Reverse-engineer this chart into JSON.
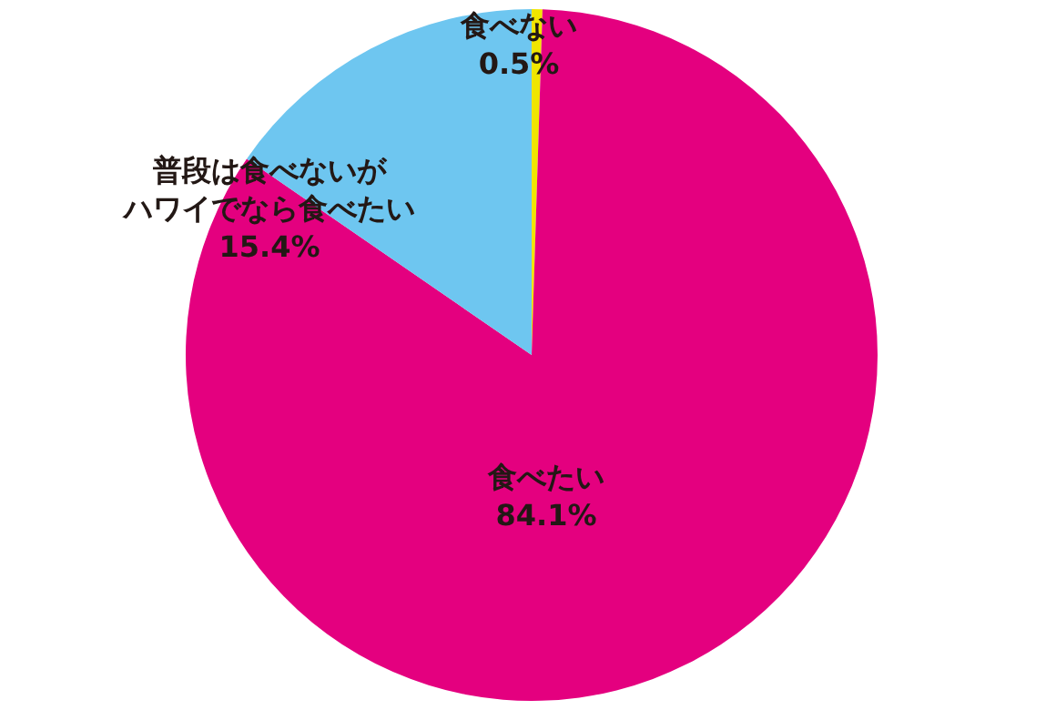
{
  "chart_data": {
    "type": "pie",
    "categories": [
      "食べない",
      "食べたい",
      "普段は食べないがハワイでなら食べたい"
    ],
    "values": [
      0.5,
      84.1,
      15.4
    ],
    "value_labels": [
      "0.5%",
      "84.1%",
      "15.4%"
    ],
    "colors": [
      "#f0e500",
      "#e4007f",
      "#6ec6f0"
    ]
  }
}
